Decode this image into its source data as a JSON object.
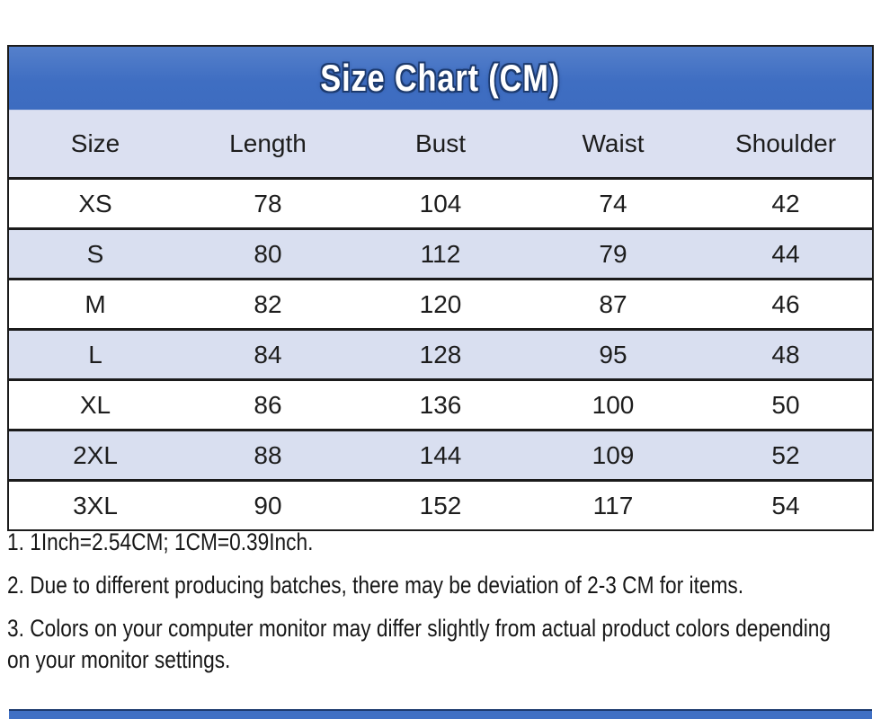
{
  "title": "Size Chart (CM)",
  "chart_data": {
    "type": "table",
    "title": "Size Chart (CM)",
    "columns": [
      "Size",
      "Length",
      "Bust",
      "Waist",
      "Shoulder"
    ],
    "rows": [
      [
        "XS",
        "78",
        "104",
        "74",
        "42"
      ],
      [
        "S",
        "80",
        "112",
        "79",
        "44"
      ],
      [
        "M",
        "82",
        "120",
        "87",
        "46"
      ],
      [
        "L",
        "84",
        "128",
        "95",
        "48"
      ],
      [
        "XL",
        "86",
        "136",
        "100",
        "50"
      ],
      [
        "2XL",
        "88",
        "144",
        "109",
        "52"
      ],
      [
        "3XL",
        "90",
        "152",
        "117",
        "54"
      ]
    ],
    "shaded_rows": [
      1,
      3,
      5
    ],
    "layout": {
      "grid": "horizontal-lines-only",
      "header_background": "#dbe0f1",
      "stripe_background": "#d9dff0"
    }
  },
  "notes": [
    "1. 1Inch=2.54CM; 1CM=0.39Inch.",
    "2. Due to different producing batches, there may be deviation of 2-3 CM for items.",
    "3. Colors on your computer monitor may differ slightly from actual product colors depending on your monitor settings."
  ],
  "colors": {
    "accent_blue": "#4070c4",
    "title_text": "#ffffff",
    "title_outline": "#1c3a6e",
    "row_shade": "#d9dff0",
    "header_shade": "#dbe0f1",
    "border_dark": "#1b1b1b",
    "text": "#1d1d1d"
  }
}
